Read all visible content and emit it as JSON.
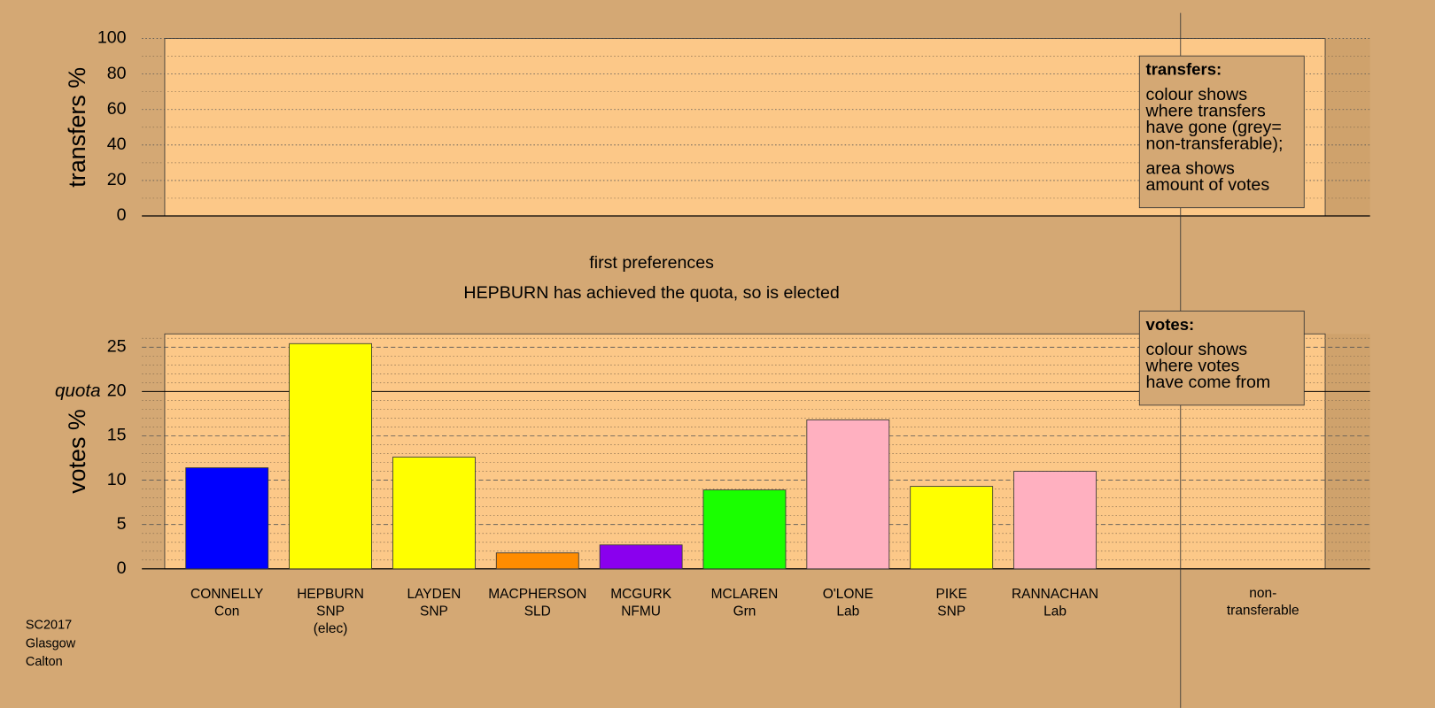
{
  "chart_data": [
    {
      "type": "area",
      "ylabel": "transfers %",
      "ylim": [
        0,
        100
      ],
      "yticks": [
        0,
        20,
        40,
        60,
        80,
        100
      ],
      "minor_gridlines": [
        10,
        30,
        50,
        70,
        90
      ],
      "note": {
        "title": "transfers:",
        "paragraphs": [
          [
            "colour shows",
            "where transfers",
            "have gone (grey=",
            "non-transferable);"
          ],
          [
            "area shows",
            "amount of votes"
          ]
        ]
      }
    },
    {
      "type": "bar",
      "title": "first preferences",
      "subtitle": "HEPBURN has achieved the quota, so is elected",
      "ylabel": "votes %",
      "categories": [
        [
          "CONNELLY",
          "Con"
        ],
        [
          "HEPBURN",
          "SNP",
          "(elec)"
        ],
        [
          "LAYDEN",
          "SNP"
        ],
        [
          "MACPHERSON",
          "SLD"
        ],
        [
          "MCGURK",
          "NFMU"
        ],
        [
          "MCLAREN",
          "Grn"
        ],
        [
          "O'LONE",
          "Lab"
        ],
        [
          "PIKE",
          "SNP"
        ],
        [
          "RANNACHAN",
          "Lab"
        ]
      ],
      "values": [
        11.4,
        25.4,
        12.6,
        1.8,
        2.7,
        8.9,
        16.8,
        9.3,
        11.0
      ],
      "colors": [
        "#0000ff",
        "#ffff00",
        "#ffff00",
        "#ff8c00",
        "#8a00ee",
        "#1aff00",
        "#ffb0c0",
        "#ffff00",
        "#ffb0c0"
      ],
      "ylim": [
        0,
        26.5
      ],
      "yticks": [
        0,
        5,
        10,
        15,
        20,
        25
      ],
      "minor_gridlines": [
        1,
        2,
        3,
        4,
        6,
        7,
        8,
        9,
        11,
        12,
        13,
        14,
        16,
        17,
        18,
        19,
        21,
        22,
        23,
        24,
        26
      ],
      "quota": {
        "label": "quota",
        "value": 20
      },
      "extra_category": [
        "non-",
        "transferable"
      ],
      "note": {
        "title": "votes:",
        "paragraphs": [
          [
            "colour shows",
            "where votes",
            "have come from"
          ]
        ]
      }
    }
  ],
  "footer": [
    "SC2017",
    "Glasgow",
    "Calton"
  ]
}
